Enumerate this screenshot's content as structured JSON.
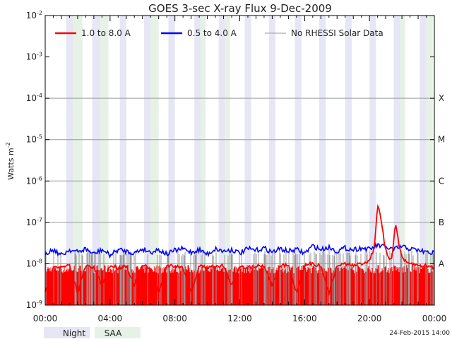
{
  "chart_data": {
    "type": "line",
    "title": "GOES 3-sec X-ray Flux    9-Dec-2009",
    "ylabel": "Watts m",
    "ylabel_sup": "-2",
    "yscale": "log",
    "ylim": [
      1e-09,
      0.01
    ],
    "y_ticks": [
      {
        "base": "10",
        "exp": "-9"
      },
      {
        "base": "10",
        "exp": "-8"
      },
      {
        "base": "10",
        "exp": "-7"
      },
      {
        "base": "10",
        "exp": "-6"
      },
      {
        "base": "10",
        "exp": "-5"
      },
      {
        "base": "10",
        "exp": "-4"
      },
      {
        "base": "10",
        "exp": "-3"
      },
      {
        "base": "10",
        "exp": "-2"
      }
    ],
    "x_ticks": [
      "00:00",
      "04:00",
      "08:00",
      "12:00",
      "16:00",
      "20:00",
      "00:00"
    ],
    "xlim_hours": [
      0,
      24
    ],
    "flare_classes": [
      {
        "label": "A",
        "flux": 1e-08
      },
      {
        "label": "B",
        "flux": 1e-07
      },
      {
        "label": "C",
        "flux": 1e-06
      },
      {
        "label": "M",
        "flux": 1e-05
      },
      {
        "label": "X",
        "flux": 0.0001
      }
    ],
    "legend_placement": "top",
    "series": [
      {
        "name": "1.0 to 8.0 A",
        "color": "#ff0000",
        "x_hours": [
          0.0,
          0.5,
          1.0,
          1.5,
          2.0,
          2.5,
          3.0,
          3.5,
          4.0,
          4.5,
          5.0,
          5.5,
          6.0,
          6.5,
          7.0,
          7.5,
          8.0,
          8.5,
          9.0,
          9.5,
          10.0,
          10.5,
          11.0,
          11.5,
          12.0,
          12.5,
          13.0,
          13.5,
          14.0,
          14.5,
          15.0,
          15.5,
          16.0,
          16.5,
          17.0,
          17.5,
          18.0,
          18.5,
          19.0,
          19.5,
          20.0,
          20.3,
          20.5,
          20.7,
          21.0,
          21.2,
          21.4,
          21.6,
          21.8,
          22.0,
          22.3,
          22.6,
          23.0,
          23.5,
          24.0
        ],
        "values": [
          2e-09,
          9e-09,
          8e-09,
          9e-09,
          2e-09,
          9e-09,
          8e-09,
          3e-09,
          9e-09,
          8e-09,
          9e-09,
          3e-09,
          9e-09,
          8e-09,
          2e-09,
          9e-09,
          9e-09,
          8e-09,
          2e-09,
          9e-09,
          8e-09,
          9e-09,
          9e-09,
          3e-09,
          9e-09,
          8e-09,
          9e-09,
          9e-09,
          3e-09,
          9e-09,
          9e-09,
          2e-09,
          9e-09,
          1e-08,
          9e-09,
          2e-09,
          9e-09,
          1e-08,
          9e-09,
          1e-08,
          1.2e-08,
          2.5e-08,
          2.8e-07,
          1.2e-07,
          2e-08,
          1.4e-08,
          1.4e-08,
          1.1e-07,
          3e-08,
          1.5e-08,
          1e-08,
          1e-08,
          9e-09,
          9e-09,
          8e-09
        ]
      },
      {
        "name": "0.5 to 4.0 A",
        "color": "#0000ff",
        "x_hours": [
          0.0,
          0.5,
          1.0,
          1.5,
          2.0,
          2.5,
          3.0,
          3.5,
          4.0,
          4.5,
          5.0,
          5.5,
          6.0,
          6.5,
          7.0,
          7.5,
          8.0,
          8.5,
          9.0,
          9.5,
          10.0,
          10.5,
          11.0,
          11.5,
          12.0,
          12.5,
          13.0,
          13.5,
          14.0,
          14.5,
          15.0,
          15.5,
          16.0,
          16.5,
          17.0,
          17.5,
          18.0,
          18.5,
          19.0,
          19.5,
          20.0,
          20.5,
          21.0,
          21.5,
          22.0,
          22.5,
          23.0,
          23.5,
          24.0
        ],
        "values": [
          1.8e-08,
          2.2e-08,
          1.6e-08,
          2.2e-08,
          1.9e-08,
          2.3e-08,
          1.7e-08,
          2.2e-08,
          1.6e-08,
          2.2e-08,
          2e-08,
          1.8e-08,
          2.3e-08,
          1.9e-08,
          2.2e-08,
          1.7e-08,
          2.1e-08,
          2.3e-08,
          1.9e-08,
          2.2e-08,
          1.7e-08,
          2.3e-08,
          2e-08,
          2.2e-08,
          1.8e-08,
          2.3e-08,
          2.1e-08,
          2.4e-08,
          1.9e-08,
          2.3e-08,
          2e-08,
          2.2e-08,
          1.8e-08,
          2.7e-08,
          2.2e-08,
          2.5e-08,
          2e-08,
          2.4e-08,
          2.2e-08,
          2.4e-08,
          2.2e-08,
          2.8e-08,
          2.5e-08,
          2.2e-08,
          2.6e-08,
          2.3e-08,
          2.1e-08,
          1.9e-08,
          1.8e-08
        ]
      },
      {
        "name": "No RHESSI Solar Data",
        "color": "#999999"
      }
    ],
    "night_intervals_hours": [
      [
        1.3,
        1.7
      ],
      [
        2.9,
        3.4
      ],
      [
        4.6,
        5.0
      ],
      [
        6.1,
        6.5
      ],
      [
        7.6,
        8.0
      ],
      [
        9.2,
        9.6
      ],
      [
        10.7,
        11.1
      ],
      [
        12.3,
        12.7
      ],
      [
        13.8,
        14.2
      ],
      [
        15.4,
        15.8
      ],
      [
        16.9,
        17.3
      ],
      [
        18.5,
        18.9
      ],
      [
        20.0,
        20.4
      ],
      [
        21.5,
        21.9
      ],
      [
        23.1,
        23.5
      ]
    ],
    "saa_intervals_hours": [
      [
        1.7,
        2.3
      ],
      [
        3.4,
        3.9
      ],
      [
        6.5,
        7.0
      ],
      [
        9.6,
        9.9
      ],
      [
        11.1,
        11.4
      ],
      [
        21.9,
        22.2
      ],
      [
        23.5,
        23.9
      ]
    ],
    "night_label": "Night",
    "saa_label": "SAA",
    "night_color": "#e6e6f5",
    "saa_color": "#e6f2e6",
    "footer_date": "24-Feb-2015 14:00"
  }
}
